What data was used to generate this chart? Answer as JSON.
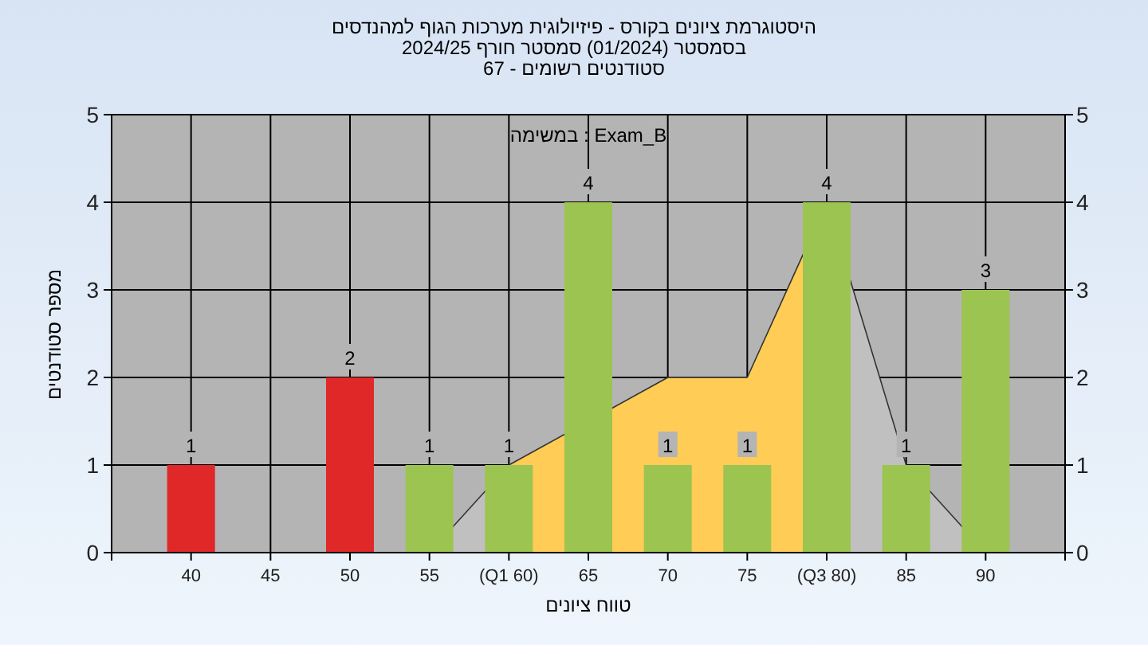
{
  "chart_data": {
    "type": "bar",
    "title": "היסטוגרמת ציונים בקורס - פיזיולוגית מערכות הגוף למהנדסים",
    "subtitle": "בסמסטר (01/2024) סמסטר חורף 2024/25\nסטודנטים רשומים - 67",
    "xlabel": "טווח ציונים",
    "ylabel": "מספר סטודנטים",
    "annotations": [
      "במשימה : Exam_B"
    ],
    "categories": [
      "40",
      "45",
      "50",
      "55",
      "(Q1 60)",
      "65",
      "70",
      "75",
      "(Q3 80)",
      "85",
      "90"
    ],
    "series": [
      {
        "type": "area",
        "color": "#c0c0c0",
        "values": [
          0,
          0,
          0,
          0,
          1,
          null,
          null,
          null,
          4,
          1,
          0
        ]
      },
      {
        "type": "area",
        "color": "#ffcc55",
        "values": [
          null,
          null,
          null,
          null,
          1,
          null,
          2,
          2,
          4,
          null,
          null
        ]
      },
      {
        "colors": [
          "#e02828",
          "#e02828",
          "#e02828",
          "#9cc450",
          "#9cc450",
          "#9cc450",
          "#9cc450",
          "#9cc450",
          "#9cc450",
          "#9cc450",
          "#9cc450"
        ],
        "values": [
          1,
          0,
          2,
          1,
          1,
          4,
          1,
          1,
          4,
          1,
          3
        ],
        "value_labels": [
          "1",
          null,
          "2",
          "1",
          "1",
          "4",
          "1",
          "1",
          "4",
          "1",
          "3"
        ]
      }
    ],
    "ylim": [
      0,
      5
    ],
    "yticks": [
      0,
      1,
      2,
      3,
      4,
      5
    ],
    "y2lim": [
      0,
      5
    ],
    "y2ticks": [
      0,
      1,
      2,
      3,
      4,
      5
    ],
    "grid": true,
    "legend": false
  }
}
